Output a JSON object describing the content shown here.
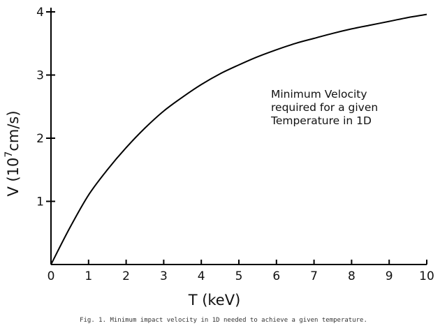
{
  "chart_data": {
    "type": "line",
    "xlabel": "T (keV)",
    "ylabel_prefix": "V (10",
    "ylabel_exp": "7",
    "ylabel_suffix": "cm/s)",
    "xlim": [
      0,
      10
    ],
    "ylim": [
      0,
      4
    ],
    "x_ticks": [
      "0",
      "1",
      "2",
      "3",
      "4",
      "5",
      "6",
      "7",
      "8",
      "9",
      "10"
    ],
    "y_ticks": [
      "1",
      "2",
      "3",
      "4"
    ],
    "grid": false,
    "annotation": [
      "Minimum Velocity",
      "required for a given",
      "Temperature in 1D"
    ],
    "series": [
      {
        "x": [
          0,
          0.5,
          1,
          1.5,
          2,
          2.5,
          3,
          3.5,
          4,
          4.5,
          5,
          5.5,
          6,
          6.5,
          7,
          7.5,
          8,
          8.5,
          9,
          9.5,
          10
        ],
        "values": [
          0,
          0.58,
          1.1,
          1.5,
          1.85,
          2.16,
          2.43,
          2.65,
          2.85,
          3.02,
          3.16,
          3.29,
          3.4,
          3.5,
          3.58,
          3.66,
          3.73,
          3.79,
          3.85,
          3.91,
          3.96
        ]
      }
    ]
  },
  "caption": "Fig. 1.  Minimum impact velocity in 1D needed to achieve a given temperature."
}
